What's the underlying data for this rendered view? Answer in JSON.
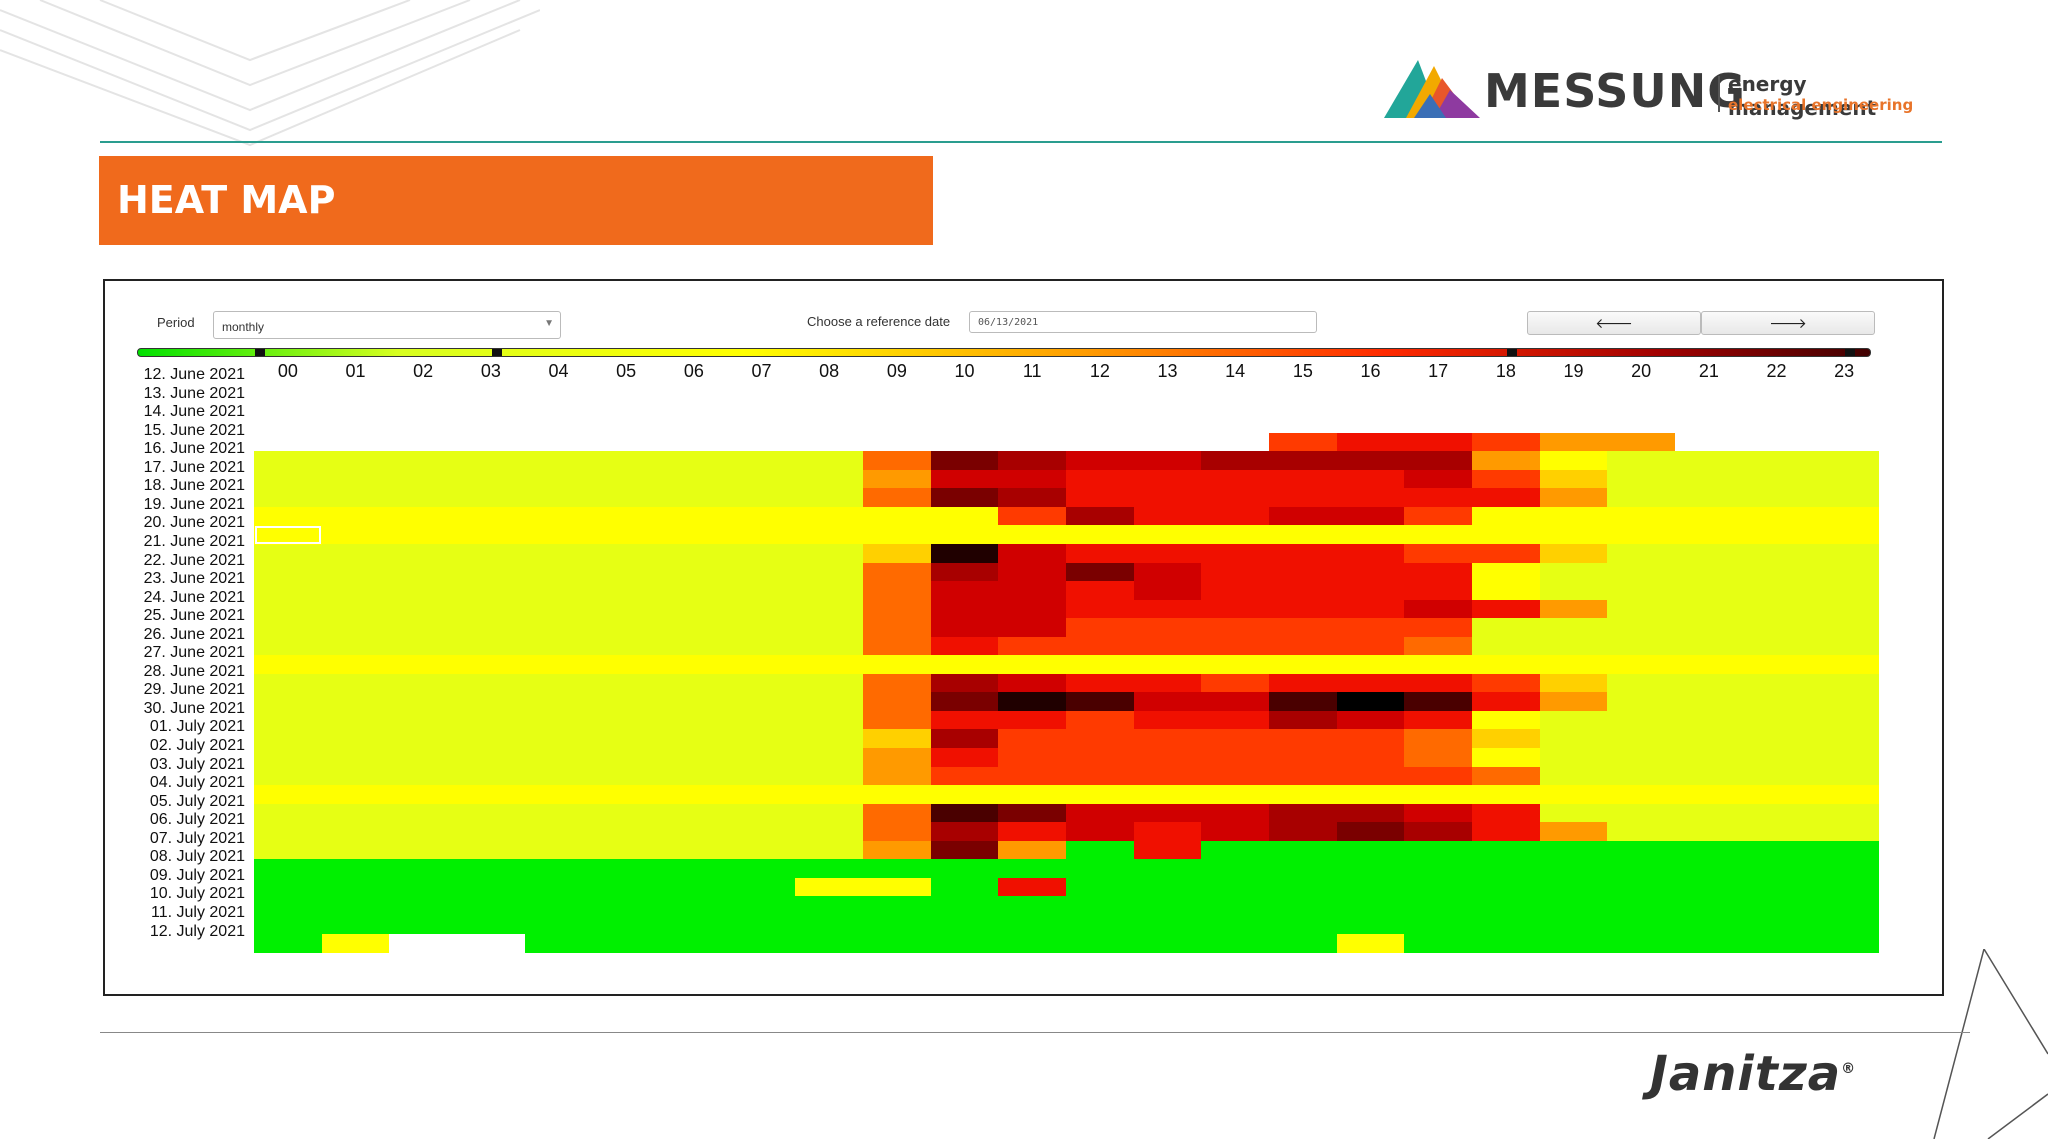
{
  "header": {
    "brand_name": "MESSUNG",
    "brand_line1": "energy management",
    "brand_line2": "electrical engineering",
    "page_title": "HEAT MAP"
  },
  "controls": {
    "period_label": "Period",
    "period_value": "monthly",
    "reference_date_label": "Choose a reference date",
    "reference_date_value": "06/13/2021",
    "prev_icon": "arrow-left-icon",
    "next_icon": "arrow-right-icon"
  },
  "footer": {
    "brand": "Janitza",
    "registered": "®"
  },
  "chart_data": {
    "type": "heatmap",
    "x": [
      "00",
      "01",
      "02",
      "03",
      "04",
      "05",
      "06",
      "07",
      "08",
      "09",
      "10",
      "11",
      "12",
      "13",
      "14",
      "15",
      "16",
      "17",
      "18",
      "19",
      "20",
      "21",
      "22",
      "23"
    ],
    "y": [
      "12. June 2021",
      "13. June 2021",
      "14. June 2021",
      "15. June 2021",
      "16. June 2021",
      "17. June 2021",
      "18. June 2021",
      "19. June 2021",
      "20. June 2021",
      "21. June 2021",
      "22. June 2021",
      "23. June 2021",
      "24. June 2021",
      "25. June 2021",
      "26. June 2021",
      "27. June 2021",
      "28. June 2021",
      "29. June 2021",
      "30. June 2021",
      "01. July 2021",
      "02. July 2021",
      "03. July 2021",
      "04. July 2021",
      "05. July 2021",
      "06. July 2021",
      "07. July 2021",
      "08. July 2021",
      "09. July 2021",
      "10. July 2021",
      "11. July 2021",
      "12. July 2021"
    ],
    "color_scale": [
      "#ffffff",
      "#00f000",
      "#e6ff14",
      "#ffff00",
      "#ffd000",
      "#ff9a00",
      "#ff6a00",
      "#ff3a00",
      "#f01000",
      "#d00000",
      "#a80000",
      "#7a0000",
      "#4a0000",
      "#200000",
      "#000000"
    ],
    "color_scale_note": "index 0 = no data",
    "values": [
      [
        0,
        0,
        0,
        0,
        0,
        0,
        0,
        0,
        0,
        0,
        0,
        0,
        0,
        0,
        0,
        0,
        0,
        0,
        0,
        0,
        0,
        0,
        0,
        0
      ],
      [
        0,
        0,
        0,
        0,
        0,
        0,
        0,
        0,
        0,
        0,
        0,
        0,
        0,
        0,
        0,
        0,
        0,
        0,
        0,
        0,
        0,
        0,
        0,
        0
      ],
      [
        0,
        0,
        0,
        0,
        0,
        0,
        0,
        0,
        0,
        0,
        0,
        0,
        0,
        0,
        0,
        0,
        0,
        0,
        0,
        0,
        0,
        0,
        0,
        0
      ],
      [
        0,
        0,
        0,
        0,
        0,
        0,
        0,
        0,
        0,
        0,
        0,
        0,
        0,
        0,
        0,
        7,
        8,
        8,
        7,
        5,
        5,
        0,
        0,
        0
      ],
      [
        2,
        2,
        2,
        2,
        2,
        2,
        2,
        2,
        2,
        6,
        11,
        10,
        9,
        9,
        10,
        10,
        10,
        10,
        5,
        3,
        2,
        2,
        2,
        2
      ],
      [
        2,
        2,
        2,
        2,
        2,
        2,
        2,
        2,
        2,
        5,
        9,
        9,
        8,
        8,
        8,
        8,
        8,
        9,
        7,
        4,
        2,
        2,
        2,
        2
      ],
      [
        2,
        2,
        2,
        2,
        2,
        2,
        2,
        2,
        2,
        6,
        11,
        10,
        8,
        8,
        8,
        8,
        8,
        8,
        8,
        5,
        2,
        2,
        2,
        2
      ],
      [
        3,
        3,
        3,
        3,
        3,
        3,
        3,
        3,
        3,
        3,
        3,
        7,
        10,
        8,
        8,
        9,
        9,
        7,
        3,
        3,
        3,
        3,
        3,
        3
      ],
      [
        3,
        3,
        3,
        3,
        3,
        3,
        3,
        3,
        3,
        3,
        3,
        3,
        3,
        3,
        3,
        3,
        3,
        3,
        3,
        3,
        3,
        3,
        3,
        3
      ],
      [
        2,
        2,
        2,
        2,
        2,
        2,
        2,
        2,
        2,
        4,
        13,
        9,
        8,
        8,
        8,
        8,
        8,
        7,
        7,
        4,
        2,
        2,
        2,
        2
      ],
      [
        2,
        2,
        2,
        2,
        2,
        2,
        2,
        2,
        2,
        6,
        10,
        9,
        11,
        9,
        8,
        8,
        8,
        8,
        3,
        2,
        2,
        2,
        2,
        2
      ],
      [
        2,
        2,
        2,
        2,
        2,
        2,
        2,
        2,
        2,
        6,
        9,
        9,
        8,
        9,
        8,
        8,
        8,
        8,
        3,
        2,
        2,
        2,
        2,
        2
      ],
      [
        2,
        2,
        2,
        2,
        2,
        2,
        2,
        2,
        2,
        6,
        9,
        9,
        8,
        8,
        8,
        8,
        8,
        9,
        8,
        5,
        2,
        2,
        2,
        2
      ],
      [
        2,
        2,
        2,
        2,
        2,
        2,
        2,
        2,
        2,
        6,
        9,
        9,
        7,
        7,
        7,
        7,
        7,
        7,
        2,
        2,
        2,
        2,
        2,
        2
      ],
      [
        2,
        2,
        2,
        2,
        2,
        2,
        2,
        2,
        2,
        6,
        8,
        7,
        7,
        7,
        7,
        7,
        7,
        6,
        2,
        2,
        2,
        2,
        2,
        2
      ],
      [
        3,
        3,
        3,
        3,
        3,
        3,
        3,
        3,
        3,
        3,
        3,
        3,
        3,
        3,
        3,
        3,
        3,
        3,
        3,
        3,
        3,
        3,
        3,
        3
      ],
      [
        2,
        2,
        2,
        2,
        2,
        2,
        2,
        2,
        2,
        6,
        10,
        9,
        8,
        8,
        7,
        8,
        8,
        8,
        7,
        4,
        2,
        2,
        2,
        2
      ],
      [
        2,
        2,
        2,
        2,
        2,
        2,
        2,
        2,
        2,
        6,
        11,
        13,
        12,
        9,
        9,
        12,
        14,
        12,
        8,
        5,
        2,
        2,
        2,
        2
      ],
      [
        2,
        2,
        2,
        2,
        2,
        2,
        2,
        2,
        2,
        6,
        8,
        8,
        7,
        8,
        8,
        10,
        9,
        8,
        3,
        2,
        2,
        2,
        2,
        2
      ],
      [
        2,
        2,
        2,
        2,
        2,
        2,
        2,
        2,
        2,
        4,
        10,
        7,
        7,
        7,
        7,
        7,
        7,
        6,
        4,
        2,
        2,
        2,
        2,
        2
      ],
      [
        2,
        2,
        2,
        2,
        2,
        2,
        2,
        2,
        2,
        5,
        8,
        7,
        7,
        7,
        7,
        7,
        7,
        6,
        3,
        2,
        2,
        2,
        2,
        2
      ],
      [
        2,
        2,
        2,
        2,
        2,
        2,
        2,
        2,
        2,
        5,
        7,
        7,
        7,
        7,
        7,
        7,
        7,
        7,
        6,
        2,
        2,
        2,
        2,
        2
      ],
      [
        3,
        3,
        3,
        3,
        3,
        3,
        3,
        3,
        3,
        3,
        3,
        3,
        3,
        3,
        3,
        3,
        3,
        3,
        3,
        3,
        3,
        3,
        3,
        3
      ],
      [
        2,
        2,
        2,
        2,
        2,
        2,
        2,
        2,
        2,
        6,
        12,
        11,
        9,
        9,
        9,
        10,
        10,
        9,
        8,
        2,
        2,
        2,
        2,
        2
      ],
      [
        2,
        2,
        2,
        2,
        2,
        2,
        2,
        2,
        2,
        6,
        10,
        8,
        9,
        8,
        9,
        10,
        11,
        10,
        8,
        5,
        2,
        2,
        2,
        2
      ],
      [
        2,
        2,
        2,
        2,
        2,
        2,
        2,
        2,
        2,
        5,
        11,
        5,
        1,
        8,
        1,
        1,
        1,
        1,
        1,
        1,
        1,
        1,
        1,
        1
      ],
      [
        1,
        1,
        1,
        1,
        1,
        1,
        1,
        1,
        1,
        1,
        1,
        1,
        1,
        1,
        1,
        1,
        1,
        1,
        1,
        1,
        1,
        1,
        1,
        1
      ],
      [
        1,
        1,
        1,
        1,
        1,
        1,
        1,
        1,
        3,
        3,
        1,
        8,
        1,
        1,
        1,
        1,
        1,
        1,
        1,
        1,
        1,
        1,
        1,
        1
      ],
      [
        1,
        1,
        1,
        1,
        1,
        1,
        1,
        1,
        1,
        1,
        1,
        1,
        1,
        1,
        1,
        1,
        1,
        1,
        1,
        1,
        1,
        1,
        1,
        1
      ],
      [
        1,
        1,
        1,
        1,
        1,
        1,
        1,
        1,
        1,
        1,
        1,
        1,
        1,
        1,
        1,
        1,
        1,
        1,
        1,
        1,
        1,
        1,
        1,
        1
      ],
      [
        1,
        3,
        0,
        0,
        1,
        1,
        1,
        1,
        1,
        1,
        1,
        1,
        1,
        1,
        1,
        1,
        3,
        1,
        1,
        1,
        1,
        1,
        1,
        1
      ]
    ],
    "selected_cell": {
      "row": "20. June 2021",
      "col": "00"
    },
    "scale_markers": [
      "00",
      "03",
      "18",
      "23"
    ]
  }
}
